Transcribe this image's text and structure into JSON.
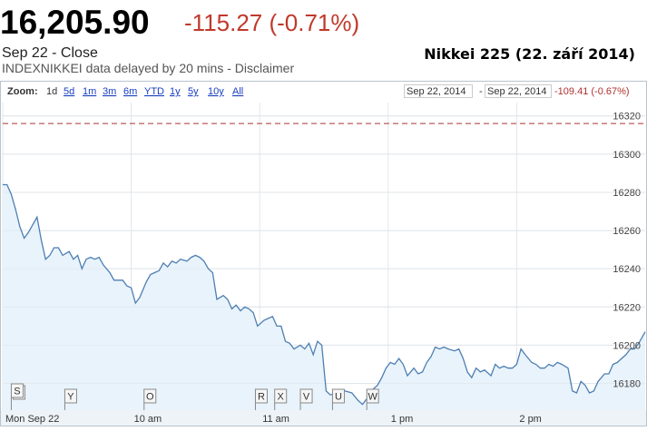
{
  "header": {
    "price": "16,205.90",
    "change": "-115.27 (-0.71%)",
    "status": "Sep 22 - Close",
    "source": "INDEXNIKKEI data delayed by 20 mins - Disclaimer",
    "title": "Nikkei 225 (22. září 2014)"
  },
  "toolbar": {
    "zoom_label": "Zoom:",
    "zoom_options": [
      "1d",
      "5d",
      "1m",
      "3m",
      "6m",
      "YTD",
      "1y",
      "5y",
      "10y",
      "All"
    ],
    "range_start": "Sep 22, 2014",
    "range_separator": "-",
    "range_end": "Sep 22, 2014",
    "range_change": "-109.41 (-0.67%)"
  },
  "chart_data": {
    "type": "line",
    "color": "#4d7fb3",
    "fill": "#e9f3fb",
    "grid": true,
    "xlim": [
      0,
      300
    ],
    "xticks": [
      {
        "value": 0,
        "label": "Mon Sep 22"
      },
      {
        "value": 60,
        "label": "10 am"
      },
      {
        "value": 120,
        "label": "11 am"
      },
      {
        "value": 180,
        "label": "1 pm"
      },
      {
        "value": 240,
        "label": "2 pm"
      }
    ],
    "ylim": [
      16166,
      16327
    ],
    "yticks": [
      16180,
      16200,
      16220,
      16240,
      16260,
      16280,
      16300,
      16320
    ],
    "reference_line": 16316,
    "x": [
      0,
      2,
      4,
      6,
      8,
      10,
      12,
      14,
      16,
      18,
      20,
      22,
      24,
      26,
      28,
      31,
      33,
      35,
      37,
      39,
      41,
      43,
      45,
      47,
      50,
      52,
      54,
      56,
      58,
      60,
      62,
      64,
      67,
      69,
      71,
      73,
      75,
      77,
      79,
      81,
      83,
      86,
      88,
      90,
      92,
      94,
      96,
      98,
      100,
      103,
      105,
      107,
      109,
      111,
      113,
      115,
      117,
      119,
      122,
      124,
      126,
      128,
      130,
      132,
      134,
      136,
      139,
      141,
      143,
      145,
      147,
      149,
      151,
      153,
      156,
      160,
      163,
      166,
      168,
      170,
      172,
      175,
      177,
      179,
      181,
      183,
      185,
      187,
      189,
      192,
      194,
      196,
      198,
      200,
      202,
      204,
      206,
      208,
      211,
      213,
      215,
      217,
      219,
      221,
      223,
      225,
      228,
      230,
      232,
      234,
      236,
      238,
      240,
      242,
      244,
      247,
      249,
      251,
      253,
      255,
      257,
      259,
      261,
      264,
      266,
      268,
      270,
      272,
      274,
      276,
      278,
      281,
      283,
      285,
      287,
      289,
      291,
      293,
      295,
      297,
      300
    ],
    "values": [
      16284,
      16284,
      16279,
      16271,
      16262,
      16256,
      16259,
      16263,
      16267,
      16255,
      16245,
      16247,
      16251,
      16251,
      16247,
      16249,
      16245,
      16247,
      16240,
      16245,
      16246,
      16245,
      16246,
      16242,
      16238,
      16234,
      16234,
      16234,
      16231,
      16230,
      16222,
      16225,
      16233,
      16237,
      16238,
      16239,
      16243,
      16241,
      16244,
      16243,
      16245,
      16244,
      16246,
      16247,
      16246,
      16244,
      16240,
      16238,
      16224,
      16226,
      16224,
      16219,
      16221,
      16218,
      16220,
      16219,
      16217,
      16210,
      16213,
      16214,
      16215,
      16210,
      16210,
      16202,
      16201,
      16198,
      16200,
      16198,
      16201,
      16195,
      16202,
      16200,
      16176,
      16174,
      16175,
      16176,
      16175,
      16171,
      16169,
      16172,
      16176,
      16179,
      16183,
      16188,
      16191,
      16190,
      16193,
      16190,
      16184,
      16188,
      16185,
      16186,
      16191,
      16194,
      16199,
      16198,
      16199,
      16198,
      16197,
      16198,
      16193,
      16186,
      16183,
      16188,
      16186,
      16187,
      16184,
      16190,
      16188,
      16189,
      16188,
      16188,
      16190,
      16198,
      16195,
      16191,
      16190,
      16188,
      16188,
      16190,
      16189,
      16191,
      16190,
      16188,
      16176,
      16175,
      16181,
      16179,
      16175,
      16176,
      16181,
      16185,
      16185,
      16190,
      16191,
      16193,
      16195,
      16198,
      16198,
      16201,
      16207
    ],
    "flags": [
      {
        "label": "S",
        "x": 4
      },
      {
        "label": "Y",
        "x": 29
      },
      {
        "label": "O",
        "x": 66
      },
      {
        "label": "R",
        "x": 118
      },
      {
        "label": "X",
        "x": 127
      },
      {
        "label": "V",
        "x": 139
      },
      {
        "label": "U",
        "x": 154
      },
      {
        "label": "W",
        "x": 170
      }
    ]
  }
}
